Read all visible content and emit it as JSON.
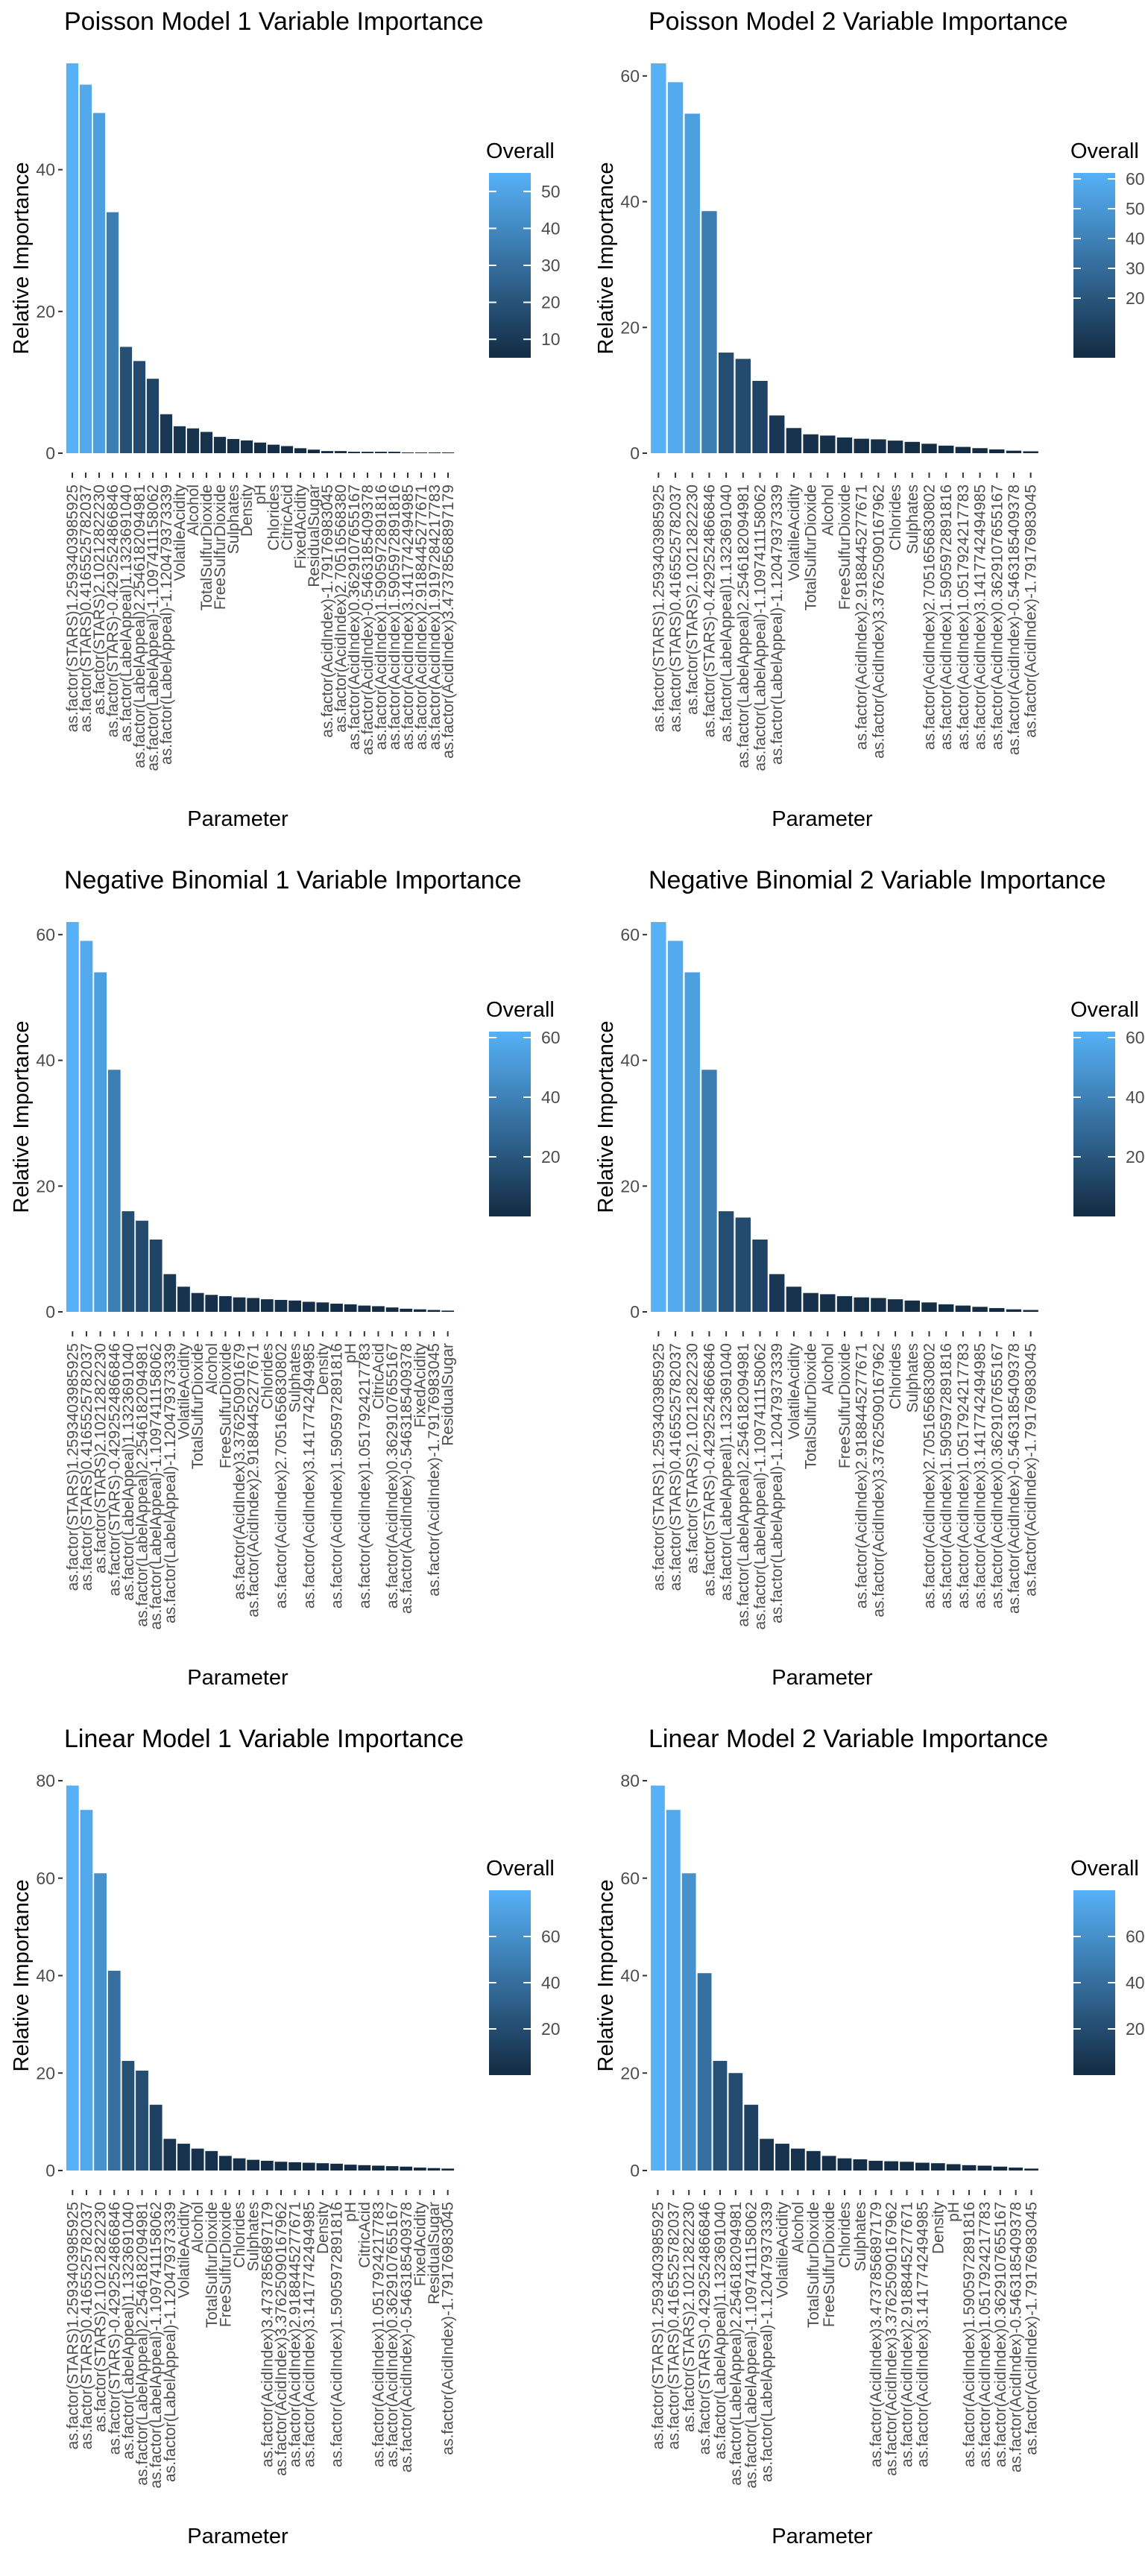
{
  "legend_title": "Overall",
  "ylabel": "Relative Importance",
  "xlabel": "Parameter",
  "chart_data": [
    {
      "type": "bar",
      "title": "Poisson Model 1 Variable Importance",
      "xlabel": "Parameter",
      "ylabel": "Relative Importance",
      "ylim": [
        0,
        55
      ],
      "yticks": [
        0,
        20,
        40
      ],
      "legend": {
        "title": "Overall",
        "range": [
          5,
          55
        ],
        "ticks": [
          10,
          20,
          30,
          40,
          50
        ]
      },
      "categories": [
        "as.factor(STARS)1.2593403985925",
        "as.factor(STARS)0.4165525782037",
        "as.factor(STARS)2.10212822230",
        "as.factor(STARS)-0.4292524866846",
        "as.factor(LabelAppeal)1.1323691040",
        "as.factor(LabelAppeal)2.2546182094981",
        "as.factor(LabelAppeal)-1.1097411158062",
        "as.factor(LabelAppeal)-1.120479373339",
        "VolatileAcidity",
        "Alcohol",
        "TotalSulfurDioxide",
        "FreeSulfurDioxide",
        "Sulphates",
        "Density",
        "pH",
        "Chlorides",
        "CitricAcid",
        "FixedAcidity",
        "ResidualSugar",
        "as.factor(AcidIndex)-1.79176983045",
        "as.factor(AcidIndex)2.70516568380",
        "as.factor(AcidIndex)0.3629107655167",
        "as.factor(AcidIndex)-0.5463185409378",
        "as.factor(AcidIndex)1.5905972891816",
        "as.factor(AcidIndex)1.5905972891816",
        "as.factor(AcidIndex)3.1417742494985",
        "as.factor(AcidIndex)2.9188445277671",
        "as.factor(AcidIndex)1.9197284217783",
        "as.factor(AcidIndex)3.47378568897179"
      ],
      "values": [
        55.0,
        52.0,
        48.0,
        34.0,
        15.0,
        13.0,
        10.5,
        5.5,
        3.8,
        3.5,
        3.0,
        2.3,
        2.0,
        1.8,
        1.5,
        1.2,
        1.0,
        0.7,
        0.5,
        0.3,
        0.3,
        0.2,
        0.2,
        0.2,
        0.2,
        0.1,
        0.1,
        0.1,
        0.1
      ]
    },
    {
      "type": "bar",
      "title": "Poisson Model 2 Variable Importance",
      "xlabel": "Parameter",
      "ylabel": "Relative Importance",
      "ylim": [
        0,
        62
      ],
      "yticks": [
        0,
        20,
        40,
        60
      ],
      "legend": {
        "title": "Overall",
        "range": [
          0,
          62
        ],
        "ticks": [
          20,
          30,
          40,
          50,
          60
        ]
      },
      "categories": [
        "as.factor(STARS)1.2593403985925",
        "as.factor(STARS)0.4165525782037",
        "as.factor(STARS)2.10212822230",
        "as.factor(STARS)-0.4292524866846",
        "as.factor(LabelAppeal)1.1323691040",
        "as.factor(LabelAppeal)2.2546182094981",
        "as.factor(LabelAppeal)-1.1097411158062",
        "as.factor(LabelAppeal)-1.120479373339",
        "VolatileAcidity",
        "TotalSulfurDioxide",
        "Alcohol",
        "FreeSulfurDioxide",
        "as.factor(AcidIndex)2.9188445277671",
        "as.factor(AcidIndex)3.37625090167962",
        "Chlorides",
        "Sulphates",
        "as.factor(AcidIndex)2.7051656830802",
        "as.factor(AcidIndex)1.5905972891816",
        "as.factor(AcidIndex)1.0517924217783",
        "as.factor(AcidIndex)3.1417742494985",
        "as.factor(AcidIndex)0.3629107655167",
        "as.factor(AcidIndex)-0.5463185409378",
        "as.factor(AcidIndex)-1.79176983045"
      ],
      "values": [
        62.0,
        59.0,
        54.0,
        38.5,
        16.0,
        15.0,
        11.5,
        6.0,
        4.0,
        3.0,
        2.8,
        2.5,
        2.3,
        2.2,
        2.0,
        1.8,
        1.5,
        1.2,
        1.0,
        0.8,
        0.6,
        0.4,
        0.3
      ]
    },
    {
      "type": "bar",
      "title": "Negative Binomial 1 Variable Importance",
      "xlabel": "Parameter",
      "ylabel": "Relative Importance",
      "ylim": [
        0,
        62
      ],
      "yticks": [
        0,
        20,
        40,
        60
      ],
      "legend": {
        "title": "Overall",
        "range": [
          0,
          62
        ],
        "ticks": [
          20,
          40,
          60
        ]
      },
      "categories": [
        "as.factor(STARS)1.2593403985925",
        "as.factor(STARS)0.4165525782037",
        "as.factor(STARS)2.10212822230",
        "as.factor(STARS)-0.4292524866846",
        "as.factor(LabelAppeal)1.1323691040",
        "as.factor(LabelAppeal)2.2546182094981",
        "as.factor(LabelAppeal)-1.1097411158062",
        "as.factor(LabelAppeal)-1.120479373339",
        "VolatileAcidity",
        "TotalSulfurDioxide",
        "Alcohol",
        "FreeSulfurDioxide",
        "as.factor(AcidIndex)3.376250901679",
        "as.factor(AcidIndex)2.91884452277671",
        "Chlorides",
        "as.factor(AcidIndex)2.7051656830802",
        "Sulphates",
        "as.factor(AcidIndex)3.1417742494985",
        "Density",
        "as.factor(AcidIndex)1.5905972891816",
        "pH",
        "as.factor(AcidIndex)1.0517924217783",
        "CitricAcid",
        "as.factor(AcidIndex)0.3629107655167",
        "as.factor(AcidIndex)-0.5463185409378",
        "FixedAcidity",
        "as.factor(AcidIndex)-1.79176983045",
        "ResidualSugar"
      ],
      "values": [
        62.0,
        59.0,
        54.0,
        38.5,
        16.0,
        14.5,
        11.5,
        6.0,
        4.0,
        3.0,
        2.7,
        2.5,
        2.3,
        2.2,
        2.0,
        1.9,
        1.8,
        1.6,
        1.5,
        1.3,
        1.2,
        1.0,
        0.9,
        0.7,
        0.5,
        0.4,
        0.3,
        0.2
      ]
    },
    {
      "type": "bar",
      "title": "Negative Binomial 2 Variable Importance",
      "xlabel": "Parameter",
      "ylabel": "Relative Importance",
      "ylim": [
        0,
        62
      ],
      "yticks": [
        0,
        20,
        40,
        60
      ],
      "legend": {
        "title": "Overall",
        "range": [
          0,
          62
        ],
        "ticks": [
          20,
          40,
          60
        ]
      },
      "categories": [
        "as.factor(STARS)1.2593403985925",
        "as.factor(STARS)0.4165525782037",
        "as.factor(STARS)2.10212822230",
        "as.factor(STARS)-0.4292524866846",
        "as.factor(LabelAppeal)1.1323691040",
        "as.factor(LabelAppeal)2.2546182094981",
        "as.factor(LabelAppeal)-1.1097411158062",
        "as.factor(LabelAppeal)-1.120479373339",
        "VolatileAcidity",
        "TotalSulfurDioxide",
        "Alcohol",
        "FreeSulfurDioxide",
        "as.factor(AcidIndex)2.9188445277671",
        "as.factor(AcidIndex)3.37625090167962",
        "Chlorides",
        "Sulphates",
        "as.factor(AcidIndex)2.7051656830802",
        "as.factor(AcidIndex)1.5905972891816",
        "as.factor(AcidIndex)1.0517924217783",
        "as.factor(AcidIndex)3.1417742494985",
        "as.factor(AcidIndex)0.3629107655167",
        "as.factor(AcidIndex)-0.5463185409378",
        "as.factor(AcidIndex)-1.79176983045"
      ],
      "values": [
        62.0,
        59.0,
        54.0,
        38.5,
        16.0,
        15.0,
        11.5,
        6.0,
        4.0,
        3.0,
        2.8,
        2.5,
        2.3,
        2.2,
        2.0,
        1.8,
        1.5,
        1.2,
        1.0,
        0.8,
        0.6,
        0.4,
        0.3
      ]
    },
    {
      "type": "bar",
      "title": "Linear Model 1 Variable Importance",
      "xlabel": "Parameter",
      "ylabel": "Relative Importance",
      "ylim": [
        0,
        80
      ],
      "yticks": [
        0,
        20,
        40,
        60,
        80
      ],
      "legend": {
        "title": "Overall",
        "range": [
          0,
          80
        ],
        "ticks": [
          20,
          40,
          60
        ]
      },
      "categories": [
        "as.factor(STARS)1.2593403985925",
        "as.factor(STARS)0.4165525782037",
        "as.factor(STARS)2.10212822230",
        "as.factor(STARS)-0.4292524866846",
        "as.factor(LabelAppeal)1.1323691040",
        "as.factor(LabelAppeal)2.2546182094981",
        "as.factor(LabelAppeal)-1.1097411158062",
        "as.factor(LabelAppeal)-1.120479373339",
        "VolatileAcidity",
        "Alcohol",
        "TotalSulfurDioxide",
        "FreeSulfurDioxide",
        "Chlorides",
        "Sulphates",
        "as.factor(AcidIndex)3.4737856897179",
        "as.factor(AcidIndex)3.37625090167962",
        "as.factor(AcidIndex)2.9188445277671",
        "as.factor(AcidIndex)3.1417742494985",
        "Density",
        "as.factor(AcidIndex)1.5905972891816",
        "pH",
        "CitricAcid",
        "as.factor(AcidIndex)1.0517924217783",
        "as.factor(AcidIndex)0.3629107655167",
        "as.factor(AcidIndex)-0.5463185409378",
        "FixedAcidity",
        "ResidualSugar",
        "as.factor(AcidIndex)-1.79176983045"
      ],
      "values": [
        79.0,
        74.0,
        61.0,
        41.0,
        22.5,
        20.5,
        13.5,
        6.5,
        5.5,
        4.5,
        4.0,
        3.0,
        2.5,
        2.2,
        2.0,
        1.8,
        1.7,
        1.6,
        1.5,
        1.4,
        1.2,
        1.1,
        1.0,
        0.9,
        0.8,
        0.6,
        0.5,
        0.4
      ]
    },
    {
      "type": "bar",
      "title": "Linear Model 2 Variable Importance",
      "xlabel": "Parameter",
      "ylabel": "Relative Importance",
      "ylim": [
        0,
        80
      ],
      "yticks": [
        0,
        20,
        40,
        60,
        80
      ],
      "legend": {
        "title": "Overall",
        "range": [
          0,
          80
        ],
        "ticks": [
          20,
          40,
          60
        ]
      },
      "categories": [
        "as.factor(STARS)1.2593403985925",
        "as.factor(STARS)0.4165525782037",
        "as.factor(STARS)2.10212822230",
        "as.factor(STARS)-0.4292524866846",
        "as.factor(LabelAppeal)1.1323691040",
        "as.factor(LabelAppeal)2.2546182094981",
        "as.factor(LabelAppeal)-1.1097411158062",
        "as.factor(LabelAppeal)-1.120479373339",
        "VolatileAcidity",
        "Alcohol",
        "TotalSulfurDioxide",
        "FreeSulfurDioxide",
        "Chlorides",
        "Sulphates",
        "as.factor(AcidIndex)3.4737856897179",
        "as.factor(AcidIndex)3.37625090167962",
        "as.factor(AcidIndex)2.9188445277671",
        "as.factor(AcidIndex)3.1417742494985",
        "Density",
        "pH",
        "as.factor(AcidIndex)1.5905972891816",
        "as.factor(AcidIndex)1.0517924217783",
        "as.factor(AcidIndex)0.3629107655167",
        "as.factor(AcidIndex)-0.5463185409378",
        "as.factor(AcidIndex)-1.79176983045"
      ],
      "values": [
        79.0,
        74.0,
        61.0,
        40.5,
        22.5,
        20.0,
        13.5,
        6.5,
        5.5,
        4.5,
        4.0,
        3.0,
        2.5,
        2.3,
        2.0,
        1.9,
        1.8,
        1.6,
        1.5,
        1.3,
        1.1,
        1.0,
        0.8,
        0.6,
        0.4
      ]
    }
  ],
  "colors": {
    "low": "#132B43",
    "high": "#56B1F7",
    "text": "#000000",
    "tick_text": "#4D4D4D",
    "axis_tick": "#333333"
  }
}
